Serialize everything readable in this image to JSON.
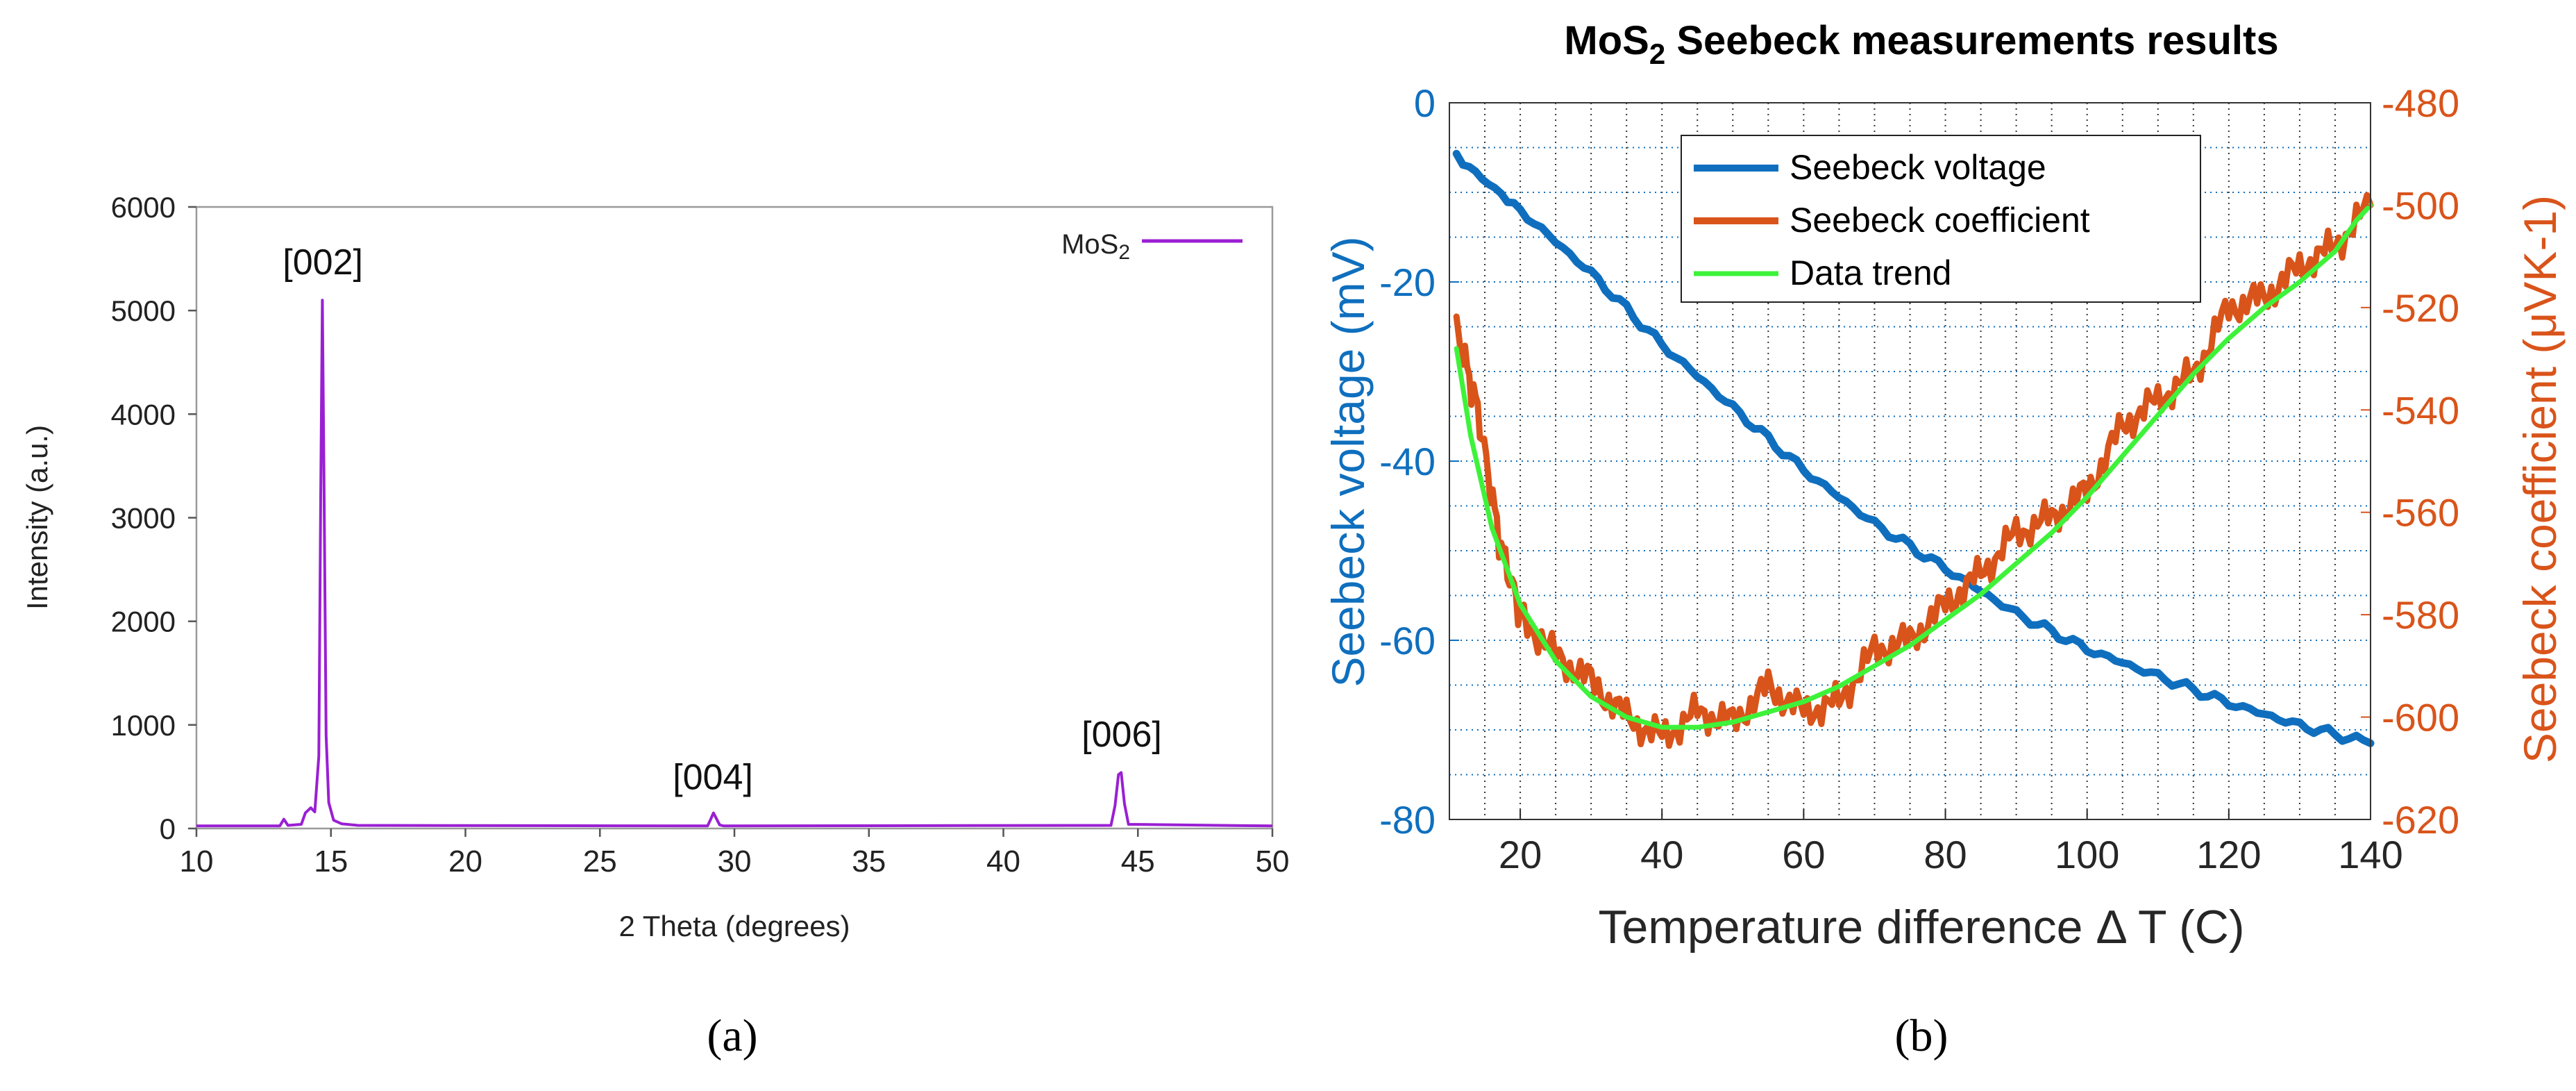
{
  "panels": {
    "a": {
      "caption": "(a)"
    },
    "b": {
      "caption": "(b)"
    }
  },
  "chart_data": [
    {
      "id": "xrd",
      "type": "line",
      "title": "",
      "xlabel": "2 Theta (degrees)",
      "ylabel": "Intensity (a.u.)",
      "xlim": [
        10,
        50
      ],
      "ylim": [
        0,
        6000
      ],
      "xticks": [
        10,
        15,
        20,
        25,
        30,
        35,
        40,
        45,
        50
      ],
      "yticks": [
        0,
        1000,
        2000,
        3000,
        4000,
        5000,
        6000
      ],
      "grid": false,
      "legend": {
        "position": "top-right",
        "entries": [
          {
            "label": "MoS",
            "sub": "2",
            "color": "#9a1fd3"
          }
        ]
      },
      "series": [
        {
          "name": "MoS2",
          "color": "#9a1fd3",
          "baseline": 25,
          "points": [
            [
              10,
              25
            ],
            [
              13.1,
              25
            ],
            [
              13.25,
              90
            ],
            [
              13.4,
              30
            ],
            [
              13.9,
              40
            ],
            [
              14.05,
              150
            ],
            [
              14.25,
              200
            ],
            [
              14.4,
              160
            ],
            [
              14.55,
              700
            ],
            [
              14.62,
              3200
            ],
            [
              14.68,
              5100
            ],
            [
              14.74,
              3400
            ],
            [
              14.82,
              900
            ],
            [
              14.92,
              250
            ],
            [
              15.1,
              80
            ],
            [
              15.4,
              45
            ],
            [
              16,
              30
            ],
            [
              29.0,
              25
            ],
            [
              29.12,
              90
            ],
            [
              29.22,
              150
            ],
            [
              29.32,
              100
            ],
            [
              29.45,
              35
            ],
            [
              29.6,
              25
            ],
            [
              44.0,
              30
            ],
            [
              44.15,
              220
            ],
            [
              44.28,
              520
            ],
            [
              44.38,
              540
            ],
            [
              44.5,
              240
            ],
            [
              44.65,
              40
            ],
            [
              50,
              25
            ]
          ]
        }
      ],
      "annotations": [
        {
          "label": "[002]",
          "x": 14.7,
          "y": 5350
        },
        {
          "label": "[004]",
          "x": 29.2,
          "y": 380
        },
        {
          "label": "[006]",
          "x": 44.4,
          "y": 790
        }
      ]
    },
    {
      "id": "seebeck",
      "type": "line",
      "title": {
        "pre": "MoS",
        "sub": "2",
        "post": " Seebeck measurements results"
      },
      "xlabel": "Temperature difference Δ T (C)",
      "ylabel_left": "Seebeck voltage (mV)",
      "ylabel_right": "Seebeck coefficient (μVK-1)",
      "xlim": [
        10,
        140
      ],
      "ylim_left": [
        -80,
        0
      ],
      "ylim_right": [
        -620,
        -480
      ],
      "xticks": [
        20,
        40,
        60,
        80,
        100,
        120,
        140
      ],
      "yticks_left": [
        -80,
        -60,
        -40,
        -20,
        0
      ],
      "yticks_right": [
        -620,
        -600,
        -580,
        -560,
        -540,
        -520,
        -500,
        -480
      ],
      "grid": true,
      "legend": {
        "position": "top-left-center",
        "entries": [
          {
            "label": "Seebeck voltage",
            "color": "#0f6fbe"
          },
          {
            "label": "Seebeck coefficient",
            "color": "#d9541a"
          },
          {
            "label": "Data trend",
            "color": "#3ef23a"
          }
        ]
      },
      "series": [
        {
          "name": "Seebeck voltage",
          "axis": "left",
          "color": "#0f6fbe",
          "points": [
            [
              11,
              -6
            ],
            [
              20,
              -12
            ],
            [
              30,
              -19
            ],
            [
              40,
              -27
            ],
            [
              50,
              -34
            ],
            [
              60,
              -41
            ],
            [
              70,
              -47
            ],
            [
              80,
              -52
            ],
            [
              90,
              -57
            ],
            [
              100,
              -61
            ],
            [
              110,
              -64
            ],
            [
              120,
              -67
            ],
            [
              130,
              -69.5
            ],
            [
              140,
              -71.5
            ]
          ]
        },
        {
          "name": "Seebeck coefficient",
          "axis": "right",
          "color": "#d9541a",
          "points": [
            [
              11,
              -524
            ],
            [
              14,
              -540
            ],
            [
              17,
              -565
            ],
            [
              20,
              -580
            ],
            [
              25,
              -588
            ],
            [
              30,
              -593
            ],
            [
              35,
              -600
            ],
            [
              40,
              -604
            ],
            [
              45,
              -599
            ],
            [
              50,
              -601
            ],
            [
              55,
              -594
            ],
            [
              60,
              -599
            ],
            [
              65,
              -597
            ],
            [
              70,
              -587
            ],
            [
              75,
              -585
            ],
            [
              80,
              -578
            ],
            [
              85,
              -572
            ],
            [
              90,
              -564
            ],
            [
              95,
              -561
            ],
            [
              100,
              -556
            ],
            [
              105,
              -543
            ],
            [
              110,
              -538
            ],
            [
              115,
              -533
            ],
            [
              120,
              -520
            ],
            [
              125,
              -518
            ],
            [
              130,
              -512
            ],
            [
              135,
              -508
            ],
            [
              140,
              -500
            ]
          ]
        },
        {
          "name": "Data trend",
          "axis": "right",
          "color": "#3ef23a",
          "points": [
            [
              11,
              -528
            ],
            [
              13,
              -545
            ],
            [
              16,
              -563
            ],
            [
              20,
              -578
            ],
            [
              25,
              -589
            ],
            [
              30,
              -596
            ],
            [
              35,
              -600
            ],
            [
              40,
              -602
            ],
            [
              45,
              -602
            ],
            [
              50,
              -601
            ],
            [
              55,
              -599
            ],
            [
              60,
              -597
            ],
            [
              65,
              -594
            ],
            [
              70,
              -590
            ],
            [
              75,
              -586
            ],
            [
              80,
              -581
            ],
            [
              85,
              -576
            ],
            [
              90,
              -570
            ],
            [
              95,
              -564
            ],
            [
              100,
              -557
            ],
            [
              105,
              -549
            ],
            [
              110,
              -541
            ],
            [
              115,
              -533
            ],
            [
              120,
              -526
            ],
            [
              125,
              -520
            ],
            [
              130,
              -515
            ],
            [
              135,
              -509
            ],
            [
              138,
              -503
            ],
            [
              140,
              -500
            ]
          ]
        }
      ]
    }
  ]
}
